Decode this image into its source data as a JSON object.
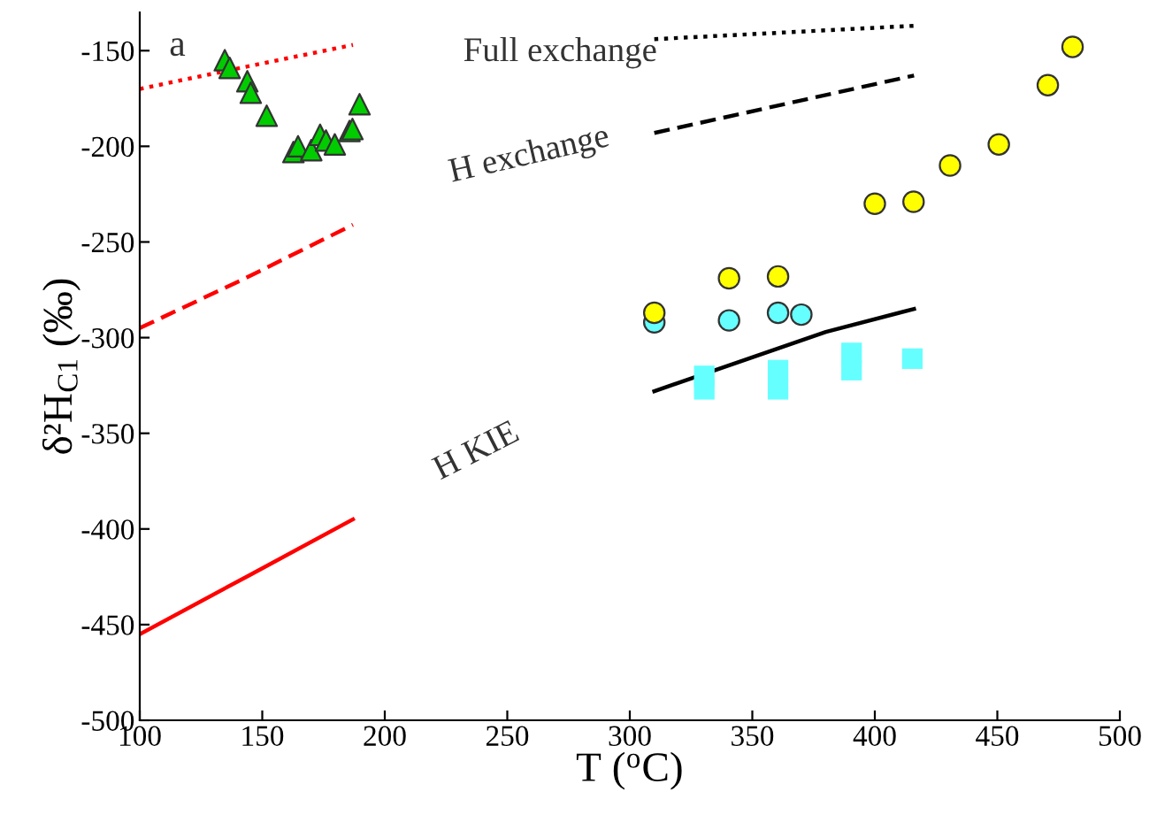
{
  "chart_data": {
    "type": "scatter",
    "xlabel": "T ($^{o}$C)",
    "ylabel": "δ²H$_{C1}$ (‰)",
    "xlim": [
      100,
      500
    ],
    "xticks": [
      100,
      150,
      200,
      250,
      300,
      350,
      400,
      450,
      500
    ],
    "ylim": [
      -500,
      -130
    ],
    "yticks": [
      -500,
      -450,
      -400,
      -350,
      -300,
      -250,
      -200,
      -150
    ],
    "annotations": [
      "a",
      "Full exchange",
      "H exchange",
      "H KIE"
    ],
    "series": [
      {
        "type": "line",
        "color": "#ff0000",
        "line_style": "dotted",
        "x": [
          100,
          145,
          187
        ],
        "values": [
          -170,
          -158,
          -147
        ]
      },
      {
        "type": "line",
        "color": "#ff0000",
        "line_style": "dashed",
        "x": [
          100,
          143,
          187
        ],
        "values": [
          -295,
          -269,
          -241
        ]
      },
      {
        "type": "line",
        "color": "#ff0000",
        "line_style": "solid",
        "x": [
          100,
          145,
          187
        ],
        "values": [
          -455,
          -424,
          -395
        ]
      },
      {
        "type": "line",
        "color": "#000000",
        "line_style": "dotted",
        "x": [
          310,
          416
        ],
        "values": [
          -144,
          -137
        ]
      },
      {
        "type": "line",
        "color": "#000000",
        "line_style": "dashed",
        "x": [
          310,
          416
        ],
        "values": [
          -193,
          -163
        ]
      },
      {
        "type": "line",
        "color": "#000000",
        "line_style": "solid",
        "x": [
          310,
          380,
          416
        ],
        "values": [
          -328,
          -297,
          -285
        ]
      },
      {
        "color": "#00cc00",
        "marker": "triangle",
        "x": [
          134.7,
          136.7,
          143.9,
          145.3,
          151.8,
          162.7,
          164.6,
          170,
          173.6,
          176,
          179.6,
          185.6,
          186.8,
          189.7
        ],
        "values": [
          -155,
          -159,
          -166,
          -172,
          -184,
          -203,
          -200,
          -202,
          -194,
          -197,
          -199,
          -192,
          -191,
          -178
        ]
      },
      {
        "color": "#66ffff",
        "marker": "circle",
        "x": [
          310,
          340.5,
          360.5,
          370
        ],
        "values": [
          -292,
          -291,
          -287,
          -288
        ]
      },
      {
        "color": "#ffff00",
        "marker": "circle",
        "x": [
          310,
          340.5,
          360.5,
          400,
          415.8,
          430.7,
          450.6,
          470.6,
          480.7
        ],
        "values": [
          -287,
          -269,
          -268,
          -230,
          -229,
          -210,
          -199,
          -168,
          -148
        ]
      },
      {
        "color": "#66ffff",
        "marker": "square",
        "x": [
          330.4,
          330.4,
          360.5,
          360.5,
          390.5,
          390.5,
          415.3
        ],
        "values": [
          -320,
          -327,
          -317,
          -327,
          -308,
          -317,
          -311
        ]
      }
    ]
  }
}
